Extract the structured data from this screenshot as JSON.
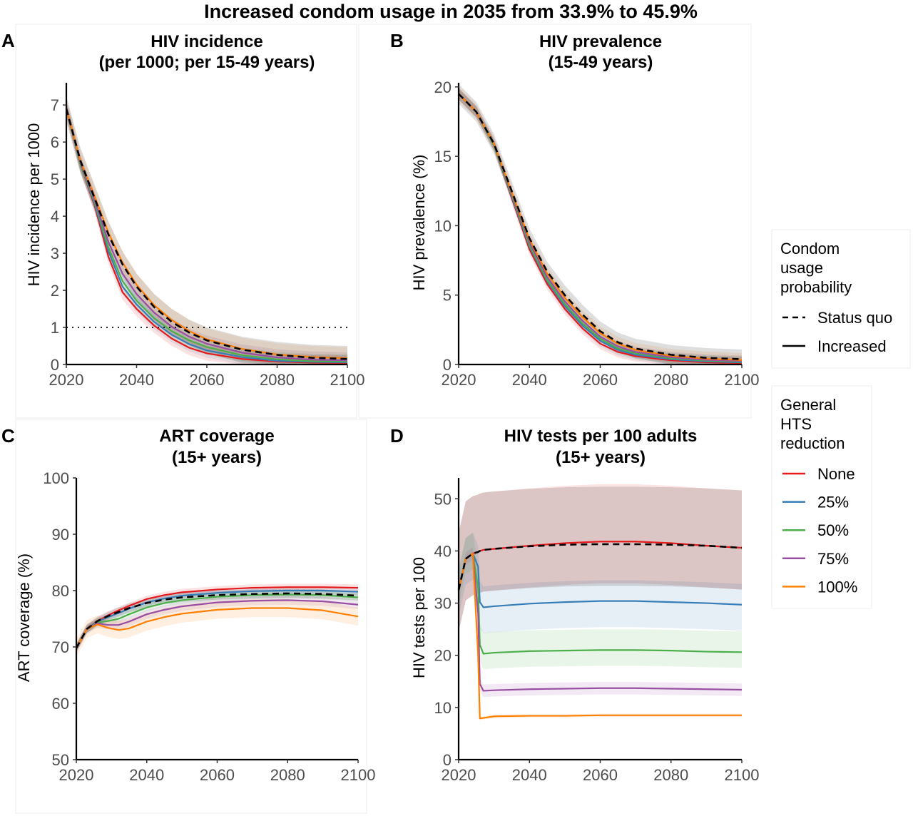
{
  "figure_title": "Increased condom usage in 2035 from 33.9% to 45.9%",
  "colors": {
    "None": "#e41a1c",
    "25%": "#377eb8",
    "50%": "#4daf4a",
    "75%": "#984ea3",
    "100%": "#ff7f00",
    "status_quo": "#000000",
    "reference_line": "#000000"
  },
  "legend": {
    "condom": {
      "title": [
        "Condom",
        "usage",
        "probability"
      ],
      "items": [
        {
          "label": "Status quo",
          "style": "dashed"
        },
        {
          "label": "Increased",
          "style": "solid"
        }
      ]
    },
    "hts": {
      "title": [
        "General",
        "HTS",
        "reduction"
      ],
      "items": [
        {
          "label": "None",
          "color_key": "None"
        },
        {
          "label": "25%",
          "color_key": "25%"
        },
        {
          "label": "50%",
          "color_key": "50%"
        },
        {
          "label": "75%",
          "color_key": "75%"
        },
        {
          "label": "100%",
          "color_key": "100%"
        }
      ]
    }
  },
  "chart_data": [
    {
      "panel": "A",
      "type": "line",
      "title": [
        "HIV incidence",
        "(per 1000; per 15-49 years)"
      ],
      "xlabel": "",
      "ylabel": "HIV incidence per 1000",
      "xlim": [
        2020,
        2100
      ],
      "ylim": [
        0,
        7.6
      ],
      "xticks": [
        2020,
        2040,
        2060,
        2080,
        2100
      ],
      "yticks": [
        0,
        1,
        2,
        3,
        4,
        5,
        6,
        7
      ],
      "reference_line": {
        "y": 1,
        "style": "dotted"
      },
      "x": [
        2020,
        2024,
        2028,
        2032,
        2036,
        2040,
        2045,
        2050,
        2055,
        2060,
        2070,
        2080,
        2090,
        2100
      ],
      "series": [
        {
          "name": "None",
          "color_key": "None",
          "values": [
            6.9,
            5.4,
            4.3,
            2.9,
            1.95,
            1.5,
            1.05,
            0.7,
            0.45,
            0.3,
            0.15,
            0.08,
            0.05,
            0.04
          ],
          "band": 0.2
        },
        {
          "name": "25%",
          "color_key": "25%",
          "values": [
            6.9,
            5.4,
            4.35,
            3.05,
            2.1,
            1.62,
            1.15,
            0.8,
            0.55,
            0.38,
            0.2,
            0.1,
            0.07,
            0.06
          ],
          "band": 0.2
        },
        {
          "name": "50%",
          "color_key": "50%",
          "values": [
            6.9,
            5.4,
            4.4,
            3.15,
            2.25,
            1.72,
            1.25,
            0.9,
            0.65,
            0.47,
            0.25,
            0.14,
            0.09,
            0.08
          ],
          "band": 0.2
        },
        {
          "name": "75%",
          "color_key": "75%",
          "values": [
            6.9,
            5.45,
            4.45,
            3.3,
            2.45,
            1.9,
            1.4,
            1.02,
            0.75,
            0.56,
            0.32,
            0.19,
            0.13,
            0.11
          ],
          "band": 0.22
        },
        {
          "name": "100%",
          "color_key": "100%",
          "values": [
            6.9,
            5.5,
            4.55,
            3.55,
            2.75,
            2.15,
            1.6,
            1.2,
            0.9,
            0.68,
            0.42,
            0.27,
            0.2,
            0.17
          ],
          "band": 0.3
        },
        {
          "name": "Status quo",
          "color_key": "status_quo",
          "dashed": true,
          "values": [
            6.9,
            5.5,
            4.5,
            3.5,
            2.7,
            2.1,
            1.55,
            1.15,
            0.86,
            0.65,
            0.4,
            0.26,
            0.18,
            0.15
          ],
          "band": 0.35
        }
      ]
    },
    {
      "panel": "B",
      "type": "line",
      "title": [
        "HIV prevalence",
        "(15-49 years)"
      ],
      "xlabel": "",
      "ylabel": "HIV prevalence (%)",
      "xlim": [
        2020,
        2100
      ],
      "ylim": [
        0,
        20.3
      ],
      "xticks": [
        2020,
        2040,
        2060,
        2080,
        2100
      ],
      "yticks": [
        0,
        5,
        10,
        15,
        20
      ],
      "x": [
        2020,
        2025,
        2030,
        2035,
        2040,
        2045,
        2050,
        2055,
        2060,
        2065,
        2070,
        2080,
        2090,
        2100
      ],
      "series": [
        {
          "name": "None",
          "color_key": "None",
          "values": [
            19.5,
            18.2,
            15.8,
            12.0,
            8.3,
            5.8,
            4.0,
            2.6,
            1.5,
            0.9,
            0.6,
            0.3,
            0.15,
            0.1
          ],
          "band": 0.4
        },
        {
          "name": "25%",
          "color_key": "25%",
          "values": [
            19.5,
            18.2,
            15.8,
            12.1,
            8.5,
            6.0,
            4.2,
            2.8,
            1.7,
            1.05,
            0.7,
            0.38,
            0.22,
            0.15
          ],
          "band": 0.4
        },
        {
          "name": "50%",
          "color_key": "50%",
          "values": [
            19.5,
            18.2,
            15.8,
            12.2,
            8.6,
            6.1,
            4.35,
            2.95,
            1.85,
            1.15,
            0.8,
            0.45,
            0.28,
            0.2
          ],
          "band": 0.4
        },
        {
          "name": "75%",
          "color_key": "75%",
          "values": [
            19.5,
            18.2,
            15.9,
            12.3,
            8.8,
            6.3,
            4.55,
            3.15,
            2.0,
            1.3,
            0.9,
            0.52,
            0.33,
            0.25
          ],
          "band": 0.4
        },
        {
          "name": "100%",
          "color_key": "100%",
          "values": [
            19.5,
            18.2,
            15.9,
            12.4,
            9.0,
            6.55,
            4.8,
            3.4,
            2.25,
            1.5,
            1.05,
            0.62,
            0.42,
            0.32
          ],
          "band": 0.5
        },
        {
          "name": "Status quo",
          "color_key": "status_quo",
          "dashed": true,
          "values": [
            19.5,
            18.2,
            15.9,
            12.5,
            9.1,
            6.7,
            5.0,
            3.6,
            2.4,
            1.6,
            1.15,
            0.7,
            0.48,
            0.38
          ],
          "band": 0.7
        }
      ]
    },
    {
      "panel": "C",
      "type": "line",
      "title": [
        "ART coverage",
        "(15+ years)"
      ],
      "xlabel": "",
      "ylabel": "ART coverage (%)",
      "xlim": [
        2020,
        2100
      ],
      "ylim": [
        50,
        100
      ],
      "xticks": [
        2020,
        2040,
        2060,
        2080,
        2100
      ],
      "yticks": [
        50,
        60,
        70,
        80,
        90,
        100
      ],
      "x": [
        2020,
        2023,
        2026,
        2029,
        2032,
        2035,
        2040,
        2045,
        2050,
        2060,
        2070,
        2080,
        2090,
        2100
      ],
      "series": [
        {
          "name": "None",
          "color_key": "None",
          "values": [
            69.8,
            73.2,
            74.6,
            75.6,
            76.5,
            77.3,
            78.5,
            79.2,
            79.7,
            80.2,
            80.5,
            80.6,
            80.6,
            80.5
          ],
          "band": 0.6
        },
        {
          "name": "25%",
          "color_key": "25%",
          "values": [
            69.8,
            73.2,
            74.5,
            75.3,
            76.0,
            76.8,
            77.9,
            78.6,
            79.1,
            79.6,
            79.9,
            80.0,
            80.0,
            79.8
          ],
          "band": 0.6
        },
        {
          "name": "50%",
          "color_key": "50%",
          "values": [
            69.8,
            73.2,
            74.3,
            74.6,
            75.0,
            75.8,
            77.0,
            77.8,
            78.3,
            78.9,
            79.2,
            79.3,
            79.2,
            78.8
          ],
          "band": 0.7
        },
        {
          "name": "75%",
          "color_key": "75%",
          "values": [
            69.8,
            73.2,
            74.2,
            73.9,
            73.9,
            74.5,
            75.8,
            76.6,
            77.2,
            77.9,
            78.2,
            78.3,
            78.1,
            77.5
          ],
          "band": 0.8
        },
        {
          "name": "100%",
          "color_key": "100%",
          "values": [
            69.8,
            73.2,
            74.0,
            73.4,
            73.0,
            73.3,
            74.5,
            75.3,
            75.9,
            76.6,
            76.9,
            76.9,
            76.5,
            75.4
          ],
          "band": 1.6
        },
        {
          "name": "Status quo",
          "color_key": "status_quo",
          "dashed": true,
          "values": [
            69.8,
            73.2,
            74.6,
            75.5,
            76.2,
            76.9,
            77.8,
            78.4,
            78.8,
            79.2,
            79.4,
            79.5,
            79.4,
            79.1
          ],
          "band": 0.8
        }
      ]
    },
    {
      "panel": "D",
      "type": "line",
      "title": [
        "HIV tests per 100 adults",
        "(15+ years)"
      ],
      "xlabel": "",
      "ylabel": "HIV tests per 100",
      "xlim": [
        2020,
        2100
      ],
      "ylim": [
        0,
        54
      ],
      "xticks": [
        2020,
        2040,
        2060,
        2080,
        2100
      ],
      "yticks": [
        0,
        10,
        20,
        30,
        40,
        50
      ],
      "x": [
        2020,
        2022,
        2024,
        2025.5,
        2026,
        2027,
        2030,
        2040,
        2050,
        2060,
        2070,
        2080,
        2090,
        2100
      ],
      "series": [
        {
          "name": "None",
          "color_key": "None",
          "values": [
            32.5,
            38.5,
            39.5,
            39.8,
            40.0,
            40.2,
            40.4,
            41.0,
            41.5,
            41.8,
            41.8,
            41.5,
            41.0,
            40.6
          ],
          "band_low": 8,
          "band_high": 11
        },
        {
          "name": "25%",
          "color_key": "25%",
          "values": [
            32.5,
            38.5,
            39.5,
            37.0,
            30.2,
            29.2,
            29.4,
            29.9,
            30.2,
            30.4,
            30.4,
            30.2,
            30.0,
            29.7
          ],
          "band_low": 5,
          "band_high": 4
        },
        {
          "name": "50%",
          "color_key": "50%",
          "values": [
            32.5,
            38.5,
            39.5,
            33.0,
            22.0,
            20.3,
            20.5,
            20.8,
            20.9,
            21.0,
            21.0,
            20.9,
            20.7,
            20.6
          ],
          "band_low": 3,
          "band_high": 4
        },
        {
          "name": "75%",
          "color_key": "75%",
          "values": [
            32.5,
            38.5,
            39.5,
            28.0,
            14.5,
            13.2,
            13.3,
            13.5,
            13.6,
            13.7,
            13.7,
            13.6,
            13.5,
            13.4
          ],
          "band_low": 1.2,
          "band_high": 1.2
        },
        {
          "name": "100%",
          "color_key": "100%",
          "values": [
            32.5,
            38.5,
            39.5,
            20.0,
            7.9,
            8.0,
            8.3,
            8.4,
            8.4,
            8.5,
            8.5,
            8.5,
            8.5,
            8.5
          ],
          "band_low": 0.3,
          "band_high": 0.3
        },
        {
          "name": "Status quo",
          "color_key": "status_quo",
          "dashed": true,
          "values": [
            32.5,
            38.5,
            39.5,
            39.8,
            40.0,
            40.2,
            40.4,
            40.9,
            41.2,
            41.3,
            41.3,
            41.2,
            41.0,
            40.6
          ],
          "band_low": 8,
          "band_high": 11
        }
      ]
    }
  ]
}
